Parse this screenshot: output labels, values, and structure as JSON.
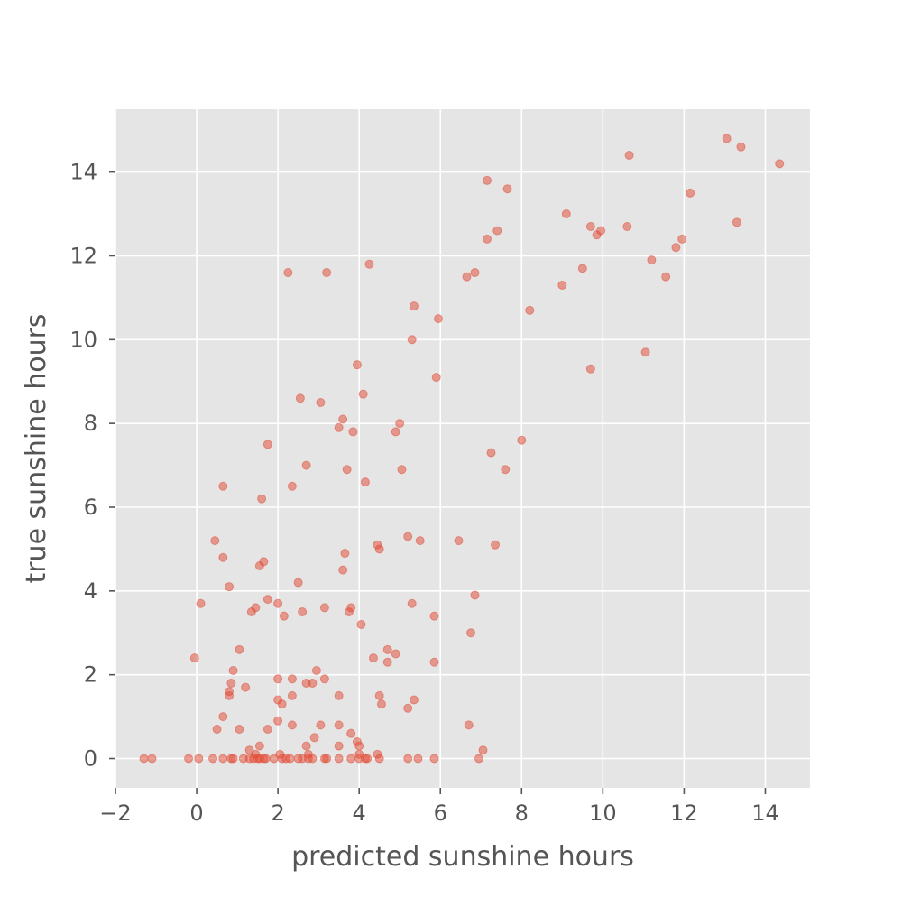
{
  "chart_data": {
    "type": "scatter",
    "title": "",
    "xlabel": "predicted sunshine hours",
    "ylabel": "true sunshine hours",
    "xlim": [
      -2,
      15.1
    ],
    "ylim": [
      -0.7,
      15.5
    ],
    "xticks": [
      -2,
      0,
      2,
      4,
      6,
      8,
      10,
      12,
      14
    ],
    "yticks": [
      0,
      2,
      4,
      6,
      8,
      10,
      12,
      14
    ],
    "xtick_labels": [
      "−2",
      "0",
      "2",
      "4",
      "6",
      "8",
      "10",
      "12",
      "14"
    ],
    "ytick_labels": [
      "0",
      "2",
      "4",
      "6",
      "8",
      "10",
      "12",
      "14"
    ],
    "grid": true,
    "background_color": "#e5e5e5",
    "grid_color": "#ffffff",
    "marker_color": "#e24a33",
    "marker_alpha": 0.5,
    "points": [
      [
        -1.3,
        0
      ],
      [
        -1.1,
        0
      ],
      [
        -0.2,
        0
      ],
      [
        0.05,
        0
      ],
      [
        0.4,
        0
      ],
      [
        0.65,
        0
      ],
      [
        0.85,
        0
      ],
      [
        0.9,
        0
      ],
      [
        1.15,
        0
      ],
      [
        1.3,
        0
      ],
      [
        1.4,
        0
      ],
      [
        1.5,
        0
      ],
      [
        1.55,
        0
      ],
      [
        1.65,
        0
      ],
      [
        1.7,
        0
      ],
      [
        1.9,
        0
      ],
      [
        2.1,
        0
      ],
      [
        2.2,
        0
      ],
      [
        2.3,
        0
      ],
      [
        2.5,
        0
      ],
      [
        2.6,
        0
      ],
      [
        2.75,
        0
      ],
      [
        2.85,
        0
      ],
      [
        3.15,
        0
      ],
      [
        3.2,
        0
      ],
      [
        3.5,
        0
      ],
      [
        3.8,
        0
      ],
      [
        4.0,
        0
      ],
      [
        4.15,
        0
      ],
      [
        4.2,
        0
      ],
      [
        4.5,
        0
      ],
      [
        5.2,
        0
      ],
      [
        5.45,
        0
      ],
      [
        5.85,
        0
      ],
      [
        6.95,
        0
      ],
      [
        1.3,
        0.2
      ],
      [
        1.45,
        0.1
      ],
      [
        1.55,
        0.3
      ],
      [
        2.05,
        0.1
      ],
      [
        2.7,
        0.3
      ],
      [
        2.75,
        0.1
      ],
      [
        3.5,
        0.3
      ],
      [
        3.95,
        0.4
      ],
      [
        4.0,
        0.3
      ],
      [
        4.0,
        0.1
      ],
      [
        4.45,
        0.1
      ],
      [
        7.05,
        0.2
      ],
      [
        0.5,
        0.7
      ],
      [
        1.05,
        0.7
      ],
      [
        1.75,
        0.7
      ],
      [
        2.0,
        0.9
      ],
      [
        2.35,
        0.8
      ],
      [
        2.9,
        0.5
      ],
      [
        3.05,
        0.8
      ],
      [
        3.5,
        0.8
      ],
      [
        3.8,
        0.6
      ],
      [
        6.7,
        0.8
      ],
      [
        0.65,
        1.0
      ],
      [
        0.8,
        1.5
      ],
      [
        0.8,
        1.6
      ],
      [
        1.2,
        1.7
      ],
      [
        2.0,
        1.4
      ],
      [
        2.1,
        1.3
      ],
      [
        2.35,
        1.5
      ],
      [
        3.5,
        1.5
      ],
      [
        4.5,
        1.5
      ],
      [
        4.55,
        1.3
      ],
      [
        5.2,
        1.2
      ],
      [
        5.35,
        1.4
      ],
      [
        0.85,
        1.8
      ],
      [
        0.9,
        2.1
      ],
      [
        2.0,
        1.9
      ],
      [
        2.35,
        1.9
      ],
      [
        2.7,
        1.8
      ],
      [
        2.85,
        1.8
      ],
      [
        2.95,
        2.1
      ],
      [
        3.15,
        1.9
      ],
      [
        -0.05,
        2.4
      ],
      [
        1.05,
        2.6
      ],
      [
        4.35,
        2.4
      ],
      [
        4.7,
        2.6
      ],
      [
        4.7,
        2.3
      ],
      [
        4.9,
        2.5
      ],
      [
        5.85,
        2.3
      ],
      [
        6.75,
        3.0
      ],
      [
        0.1,
        3.7
      ],
      [
        0.8,
        4.1
      ],
      [
        1.35,
        3.5
      ],
      [
        1.45,
        3.6
      ],
      [
        1.75,
        3.8
      ],
      [
        2.0,
        3.7
      ],
      [
        2.15,
        3.4
      ],
      [
        2.6,
        3.5
      ],
      [
        3.15,
        3.6
      ],
      [
        3.75,
        3.5
      ],
      [
        3.8,
        3.6
      ],
      [
        4.05,
        3.2
      ],
      [
        5.3,
        3.7
      ],
      [
        5.85,
        3.4
      ],
      [
        6.85,
        3.9
      ],
      [
        0.45,
        5.2
      ],
      [
        0.65,
        4.8
      ],
      [
        1.55,
        4.6
      ],
      [
        1.65,
        4.7
      ],
      [
        2.5,
        4.2
      ],
      [
        3.6,
        4.5
      ],
      [
        3.65,
        4.9
      ],
      [
        4.45,
        5.1
      ],
      [
        4.5,
        5.0
      ],
      [
        5.2,
        5.3
      ],
      [
        5.5,
        5.2
      ],
      [
        6.45,
        5.2
      ],
      [
        7.35,
        5.1
      ],
      [
        0.65,
        6.5
      ],
      [
        1.6,
        6.2
      ],
      [
        2.35,
        6.5
      ],
      [
        2.7,
        7.0
      ],
      [
        3.7,
        6.9
      ],
      [
        4.15,
        6.6
      ],
      [
        5.05,
        6.9
      ],
      [
        7.25,
        7.3
      ],
      [
        7.6,
        6.9
      ],
      [
        8.0,
        7.6
      ],
      [
        1.75,
        7.5
      ],
      [
        3.05,
        8.5
      ],
      [
        2.55,
        8.6
      ],
      [
        3.5,
        7.9
      ],
      [
        3.6,
        8.1
      ],
      [
        3.85,
        7.8
      ],
      [
        4.1,
        8.7
      ],
      [
        4.9,
        7.8
      ],
      [
        5.0,
        8.0
      ],
      [
        3.95,
        9.4
      ],
      [
        5.3,
        10.0
      ],
      [
        5.35,
        10.8
      ],
      [
        5.9,
        9.1
      ],
      [
        5.95,
        10.5
      ],
      [
        9.7,
        9.3
      ],
      [
        11.05,
        9.7
      ],
      [
        2.25,
        11.6
      ],
      [
        3.2,
        11.6
      ],
      [
        4.25,
        11.8
      ],
      [
        6.65,
        11.5
      ],
      [
        6.85,
        11.6
      ],
      [
        8.2,
        10.7
      ],
      [
        9.0,
        11.3
      ],
      [
        9.5,
        11.7
      ],
      [
        11.2,
        11.9
      ],
      [
        11.55,
        11.5
      ],
      [
        7.15,
        12.4
      ],
      [
        7.4,
        12.6
      ],
      [
        9.1,
        13.0
      ],
      [
        9.7,
        12.7
      ],
      [
        9.85,
        12.5
      ],
      [
        9.95,
        12.6
      ],
      [
        10.6,
        12.7
      ],
      [
        11.8,
        12.2
      ],
      [
        11.95,
        12.4
      ],
      [
        12.15,
        13.5
      ],
      [
        13.3,
        12.8
      ],
      [
        7.15,
        13.8
      ],
      [
        7.65,
        13.6
      ],
      [
        10.65,
        14.4
      ],
      [
        13.05,
        14.8
      ],
      [
        13.4,
        14.6
      ],
      [
        14.35,
        14.2
      ]
    ]
  }
}
